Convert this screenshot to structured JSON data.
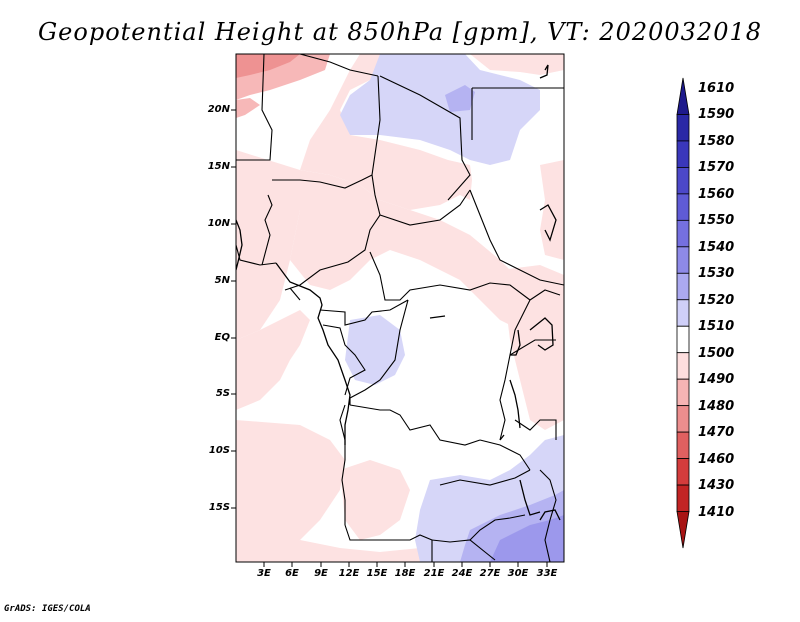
{
  "title": "Geopotential Height at 850hPa [gpm], VT: 2020032018",
  "credit": "GrADS: IGES/COLA",
  "lat_labels": [
    "20N",
    "15N",
    "10N",
    "5N",
    "EQ",
    "5S",
    "10S",
    "15S"
  ],
  "lon_labels": [
    "3E",
    "6E",
    "9E",
    "12E",
    "15E",
    "18E",
    "21E",
    "24E",
    "27E",
    "30E",
    "33E"
  ],
  "colorbar": {
    "levels": [
      "1610",
      "1590",
      "1580",
      "1570",
      "1560",
      "1550",
      "1540",
      "1530",
      "1520",
      "1510",
      "1500",
      "1490",
      "1480",
      "1470",
      "1460",
      "1430",
      "1410"
    ],
    "colors": [
      "#1e1a8c",
      "#2a28a6",
      "#3a37bb",
      "#4c48c9",
      "#5f5bd6",
      "#7570e0",
      "#8e8ae8",
      "#aba9f0",
      "#cfcff8",
      "#ffffff",
      "#fddede",
      "#f6b4b4",
      "#ec8e8e",
      "#e06060",
      "#d43c3c",
      "#c22424",
      "#a81414"
    ]
  }
}
